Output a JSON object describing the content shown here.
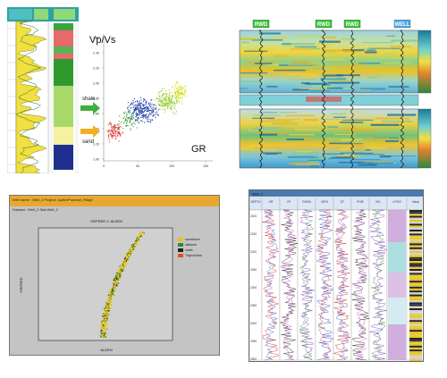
{
  "crossplot": {
    "title": "Vp/Vs",
    "xlabel": "GR",
    "facies": [
      {
        "label": "shale",
        "color": "#3fae3f"
      },
      {
        "label": "sand",
        "color": "#f0b020"
      }
    ],
    "ytick_labels": [
      "2.60",
      "2.40",
      "2.20",
      "2.00",
      "1.80",
      "1.60",
      "1.40",
      "1.20",
      "1.00"
    ],
    "xtick_labels": [
      "0",
      "50",
      "100",
      "150"
    ]
  },
  "seismic": {
    "well_tags": [
      "RWD",
      "RWD",
      "RWD",
      "WELL"
    ],
    "tag_color": "#3cc23c"
  },
  "logplot": {
    "header": "Well name : Well_2   Project: JupiterPurpose_Ridge",
    "subheader": "Dataset : Well_2   Stat:Well_2",
    "chart_title": "GRPRED  V.  ALDEN",
    "legend": [
      {
        "label": "sandstone",
        "color": "#e8c419"
      },
      {
        "label": "siltstone",
        "color": "#2e8b2e"
      },
      {
        "label": "shale",
        "color": "#1f1f1f"
      },
      {
        "label": "Trajectories",
        "color": "#e05020"
      }
    ],
    "xlabel": "ALDEN",
    "ylabel": "GRPRED"
  },
  "tracks": {
    "header": "Well_2",
    "track_titles": [
      "DEPTH",
      "GR",
      "VP",
      "RHOB",
      "NPHI",
      "DT",
      "PHIE",
      "VCL",
      "LITHO",
      "Interp"
    ],
    "depth_labels": [
      "2100",
      "2150",
      "2200",
      "2250",
      "2300",
      "2350",
      "2400",
      "2450",
      "2500"
    ],
    "zone_colors": [
      "#c8a0d8",
      "#9ed7dc",
      "#d7b6e0",
      "#cde7ee",
      "#c8a0d8"
    ]
  }
}
